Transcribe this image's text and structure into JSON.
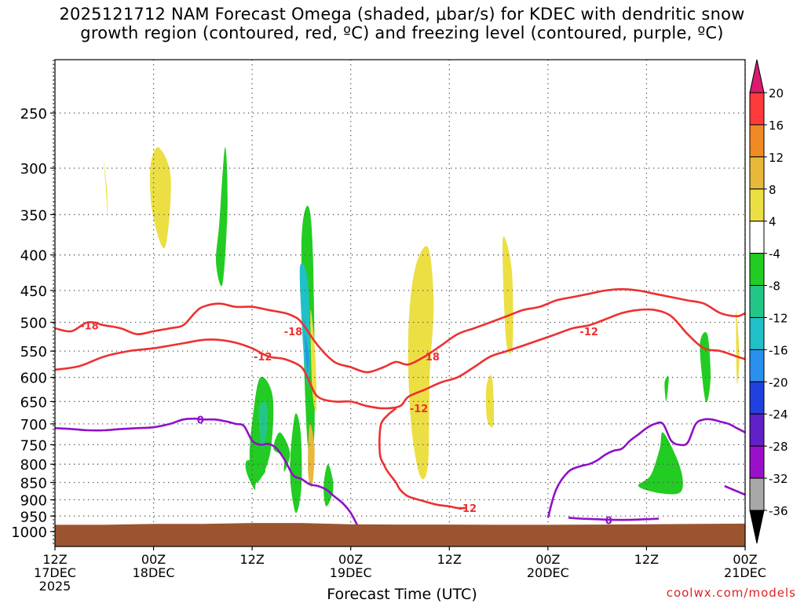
{
  "title": {
    "line1": "2025121712 NAM Forecast Omega (shaded, μbar/s) for KDEC with dendritic snow",
    "line2": "growth region (contoured, red, ºC) and freezing level (contoured, purple, ºC)"
  },
  "credit": "coolwx.com/models",
  "chart_data": {
    "type": "time-height cross section",
    "title": "2025121712 NAM Forecast Omega (shaded, μbar/s) for KDEC with dendritic snow growth region (contoured, red, ºC) and freezing level (contoured, purple, ºC)",
    "xlabel": "Forecast Time (UTC)",
    "ylabel": "",
    "x_range_hours": [
      0,
      84
    ],
    "y_scale": "log-pressure (hPa, inverted)",
    "ylim_hpa": [
      1050,
      200
    ],
    "x_ticks": [
      {
        "hour": 0,
        "lines": [
          "12Z",
          "17DEC",
          "2025"
        ]
      },
      {
        "hour": 12,
        "lines": [
          "00Z",
          "18DEC"
        ]
      },
      {
        "hour": 24,
        "lines": [
          "12Z"
        ]
      },
      {
        "hour": 36,
        "lines": [
          "00Z",
          "19DEC"
        ]
      },
      {
        "hour": 48,
        "lines": [
          "12Z"
        ]
      },
      {
        "hour": 60,
        "lines": [
          "00Z",
          "20DEC"
        ]
      },
      {
        "hour": 72,
        "lines": [
          "12Z"
        ]
      },
      {
        "hour": 84,
        "lines": [
          "00Z",
          "21DEC"
        ]
      }
    ],
    "y_ticks": [
      {
        "p": 250,
        "label": "250"
      },
      {
        "p": 300,
        "label": "300"
      },
      {
        "p": 350,
        "label": "350"
      },
      {
        "p": 400,
        "label": "400"
      },
      {
        "p": 450,
        "label": "450"
      },
      {
        "p": 500,
        "label": "500"
      },
      {
        "p": 550,
        "label": "550"
      },
      {
        "p": 600,
        "label": "600"
      },
      {
        "p": 650,
        "label": "650"
      },
      {
        "p": 700,
        "label": "700"
      },
      {
        "p": 750,
        "label": "750"
      },
      {
        "p": 800,
        "label": "800"
      },
      {
        "p": 850,
        "label": "850"
      },
      {
        "p": 900,
        "label": "900"
      },
      {
        "p": 950,
        "label": "950"
      },
      {
        "p": 1000,
        "label": "1000"
      }
    ],
    "colorbar": {
      "labels": [
        "20",
        "16",
        "12",
        "8",
        "4",
        "-4",
        "-8",
        "-12",
        "-16",
        "-20",
        "-24",
        "-28",
        "-32",
        "-36"
      ],
      "colors": [
        "#d81b6e",
        "#ff3a3a",
        "#f08a24",
        "#e8b83a",
        "#ecdf44",
        "#ffffff",
        "#22cc22",
        "#22c788",
        "#20c0c8",
        "#2a90ee",
        "#2040e0",
        "#6020c8",
        "#9a10c8",
        "#a8a8a8",
        "#000000"
      ]
    },
    "ground": {
      "color": "#9a5530",
      "surface_hpa": [
        978,
        978,
        975,
        975,
        972,
        972,
        976,
        977,
        977,
        978,
        978,
        977,
        976,
        975,
        974
      ]
    },
    "omega_regions": [
      {
        "value": 4,
        "color": "#ecdf44",
        "t": [
          5.9,
          6.3,
          6.4,
          6.1
        ],
        "p": [
          290,
          320,
          350,
          310
        ]
      },
      {
        "value": 4,
        "color": "#ecdf44",
        "t": [
          11.6,
          12.6,
          14.1,
          13.4,
          11.9
        ],
        "p": [
          300,
          280,
          310,
          390,
          350
        ]
      },
      {
        "value": -4,
        "color": "#22cc22",
        "t": [
          20.0,
          20.7,
          21.0,
          20.4,
          19.6
        ],
        "p": [
          360,
          280,
          340,
          440,
          410
        ]
      },
      {
        "value": -4,
        "color": "#22cc22",
        "t": [
          24.1,
          25.0,
          26.5,
          26.2,
          24.6,
          23.7
        ],
        "p": [
          680,
          600,
          640,
          770,
          850,
          790
        ]
      },
      {
        "value": -8,
        "color": "#22c788",
        "t": [
          24.8,
          25.6,
          25.9,
          25.2
        ],
        "p": [
          670,
          650,
          700,
          760
        ]
      },
      {
        "value": -4,
        "color": "#22cc22",
        "t": [
          23.4,
          25.0,
          25.6,
          24.5,
          24.3,
          23.3
        ],
        "p": [
          790,
          800,
          820,
          850,
          870,
          820
        ]
      },
      {
        "value": -4,
        "color": "#22cc22",
        "t": [
          27.4,
          28.6,
          27.9,
          27.8,
          26.6
        ],
        "p": [
          720,
          770,
          820,
          780,
          760
        ]
      },
      {
        "value": -4,
        "color": "#22cc22",
        "t": [
          30.0,
          30.8,
          31.4,
          31.6,
          31.0,
          30.5
        ],
        "p": [
          390,
          340,
          400,
          700,
          780,
          660
        ]
      },
      {
        "value": -12,
        "color": "#20c0c8",
        "t": [
          29.8,
          30.8,
          31.0,
          30.4
        ],
        "p": [
          420,
          440,
          600,
          580
        ]
      },
      {
        "value": -16,
        "color": "#2a90ee",
        "t": [
          30.4,
          30.9,
          30.7
        ],
        "p": [
          520,
          560,
          590
        ]
      },
      {
        "value": -4,
        "color": "#22cc22",
        "t": [
          29.2,
          29.9,
          30.0,
          29.3,
          28.6
        ],
        "p": [
          680,
          720,
          860,
          940,
          820
        ]
      },
      {
        "value": 4,
        "color": "#ecdf44",
        "t": [
          31.1,
          31.7,
          31.8,
          31.3
        ],
        "p": [
          480,
          560,
          670,
          620
        ]
      },
      {
        "value": 8,
        "color": "#e8b83a",
        "t": [
          31.0,
          31.6,
          31.3,
          30.8
        ],
        "p": [
          700,
          760,
          860,
          820
        ]
      },
      {
        "value": -4,
        "color": "#22cc22",
        "t": [
          33.2,
          33.8,
          33.8,
          33.0,
          32.7
        ],
        "p": [
          800,
          840,
          880,
          920,
          860
        ]
      },
      {
        "value": 4,
        "color": "#ecdf44",
        "t": [
          43.0,
          43.8,
          45.4,
          46.1,
          45.6,
          45.4,
          44.4,
          43.3
        ],
        "p": [
          520,
          420,
          390,
          470,
          600,
          800,
          830,
          690
        ]
      },
      {
        "value": 4,
        "color": "#ecdf44",
        "t": [
          52.5,
          53.2,
          53.4,
          52.6
        ],
        "p": [
          620,
          600,
          700,
          690
        ]
      },
      {
        "value": 4,
        "color": "#ecdf44",
        "t": [
          54.5,
          55.6,
          55.7,
          54.9
        ],
        "p": [
          380,
          420,
          540,
          530
        ]
      },
      {
        "value": -4,
        "color": "#22cc22",
        "t": [
          71.0,
          72.5,
          73.6,
          74.0,
          75.6,
          76.4,
          76.0,
          73.5
        ],
        "p": [
          860,
          830,
          760,
          720,
          780,
          840,
          880,
          880
        ]
      },
      {
        "value": -4,
        "color": "#22cc22",
        "t": [
          78.5,
          79.4,
          79.8,
          79.2
        ],
        "p": [
          540,
          520,
          600,
          650
        ]
      },
      {
        "value": -4,
        "color": "#22cc22",
        "t": [
          74.2,
          74.7,
          74.4
        ],
        "p": [
          610,
          600,
          650
        ]
      },
      {
        "value": 4,
        "color": "#ecdf44",
        "t": [
          82.9,
          83.3,
          83.0
        ],
        "p": [
          480,
          560,
          610
        ]
      }
    ],
    "contours": [
      {
        "name": "-18",
        "color": "#ee3030",
        "t": [
          0,
          2,
          4,
          6,
          8,
          10,
          12,
          14,
          15.6,
          17,
          18,
          20,
          22,
          24,
          26,
          28,
          29,
          30,
          32,
          34,
          36,
          38,
          40,
          41.5,
          43,
          45,
          47,
          49,
          51,
          53,
          55,
          57,
          59,
          61,
          63,
          65,
          67,
          69,
          71,
          73,
          75,
          77,
          79,
          81,
          83,
          84
        ],
        "p": [
          510,
          515,
          500,
          505,
          510,
          520,
          515,
          510,
          505,
          485,
          475,
          470,
          475,
          475,
          480,
          485,
          490,
          500,
          540,
          570,
          580,
          590,
          580,
          570,
          575,
          560,
          540,
          520,
          510,
          500,
          490,
          480,
          475,
          465,
          460,
          455,
          450,
          448,
          450,
          455,
          460,
          465,
          470,
          485,
          490,
          485
        ]
      },
      {
        "name": "-12",
        "color": "#ee3030",
        "t": [
          0,
          3,
          6,
          9,
          12,
          14,
          16,
          18,
          20,
          22,
          24,
          26,
          28,
          30,
          31,
          32,
          34,
          36,
          38,
          40,
          42,
          43,
          45,
          47,
          49,
          51,
          53,
          55,
          57,
          59,
          61,
          63,
          65,
          67,
          69,
          71,
          73,
          75,
          77,
          79,
          81,
          83,
          84
        ],
        "p": [
          585,
          578,
          560,
          550,
          545,
          540,
          535,
          530,
          530,
          535,
          545,
          560,
          565,
          580,
          610,
          640,
          650,
          650,
          660,
          665,
          660,
          640,
          625,
          610,
          600,
          580,
          560,
          550,
          540,
          530,
          520,
          510,
          505,
          495,
          485,
          480,
          480,
          490,
          520,
          545,
          550,
          560,
          565
        ]
      },
      {
        "name": "-12",
        "color": "#ee3030",
        "t": [
          41.5,
          40.5,
          39.7,
          39.5,
          39.6,
          40.0,
          40.5,
          41.5,
          42,
          43,
          45,
          46.5,
          48,
          49,
          50
        ],
        "p": [
          665,
          680,
          700,
          740,
          780,
          800,
          820,
          850,
          870,
          890,
          905,
          915,
          920,
          925,
          925
        ]
      },
      {
        "name": "0",
        "color": "#9010c8",
        "t": [
          0,
          2,
          4,
          6,
          8,
          10,
          12,
          14,
          15.6,
          17,
          18,
          19.5,
          21,
          22,
          23,
          24,
          25,
          26,
          27,
          28,
          29,
          30,
          31,
          32,
          33,
          34,
          35,
          36,
          37
        ],
        "p": [
          710,
          712,
          715,
          715,
          712,
          710,
          708,
          700,
          690,
          688,
          690,
          690,
          695,
          700,
          705,
          740,
          750,
          748,
          760,
          790,
          830,
          840,
          855,
          860,
          870,
          890,
          910,
          940,
          990
        ]
      },
      {
        "name": "0",
        "color": "#9010c8",
        "t": [
          60,
          61,
          62.5,
          64,
          65,
          66,
          67,
          68,
          69,
          70,
          71,
          72,
          73,
          74,
          75,
          76,
          77,
          78,
          79,
          80,
          81,
          82,
          83,
          84
        ],
        "p": [
          955,
          870,
          820,
          805,
          800,
          790,
          775,
          765,
          760,
          740,
          725,
          710,
          700,
          700,
          740,
          750,
          745,
          700,
          690,
          690,
          695,
          700,
          710,
          720
        ]
      },
      {
        "name": "0",
        "color": "#9010c8",
        "t": [
          62.5,
          64,
          66,
          68,
          70,
          72,
          73.5
        ],
        "p": [
          955,
          958,
          960,
          962,
          962,
          960,
          958
        ]
      },
      {
        "name": "0",
        "color": "#9010c8",
        "t": [
          81.5,
          82.5,
          83.5,
          84
        ],
        "p": [
          860,
          870,
          880,
          885
        ]
      }
    ],
    "contour_labels": [
      {
        "text": "-18",
        "t": 4.2,
        "p": 505,
        "color": "#ee3030"
      },
      {
        "text": "-18",
        "t": 29.0,
        "p": 515,
        "color": "#ee3030"
      },
      {
        "text": "-18",
        "t": 45.7,
        "p": 560,
        "color": "#ee3030"
      },
      {
        "text": "-12",
        "t": 25.3,
        "p": 560,
        "color": "#ee3030"
      },
      {
        "text": "-12",
        "t": 44.3,
        "p": 665,
        "color": "#ee3030"
      },
      {
        "text": "-12",
        "t": 65.0,
        "p": 515,
        "color": "#ee3030"
      },
      {
        "text": "-12",
        "t": 50.2,
        "p": 925,
        "color": "#ee3030"
      },
      {
        "text": "0",
        "t": 17.7,
        "p": 690,
        "color": "#9010c8"
      },
      {
        "text": "0",
        "t": 67.4,
        "p": 963,
        "color": "#9010c8"
      }
    ]
  }
}
